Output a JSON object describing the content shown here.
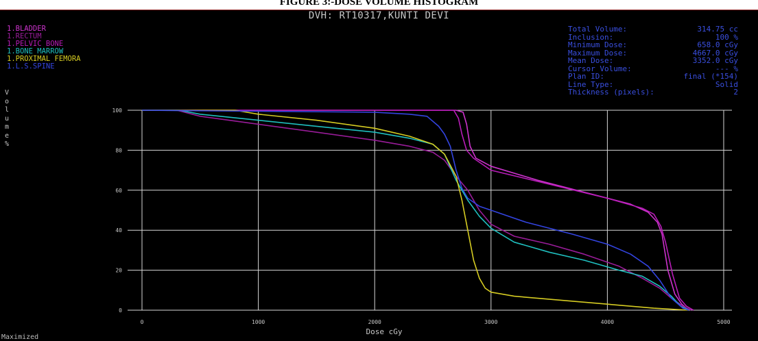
{
  "caption": "FIGURE 3:-DOSE VOLUME HISTOGRAM",
  "window": {
    "status": "Maximized"
  },
  "structures": [
    {
      "label": "1.BLADDER",
      "color": "#cc33cc"
    },
    {
      "label": "1.RECTUM",
      "color": "#991c99"
    },
    {
      "label": "1.PELVIC BONE",
      "color": "#b81cb8"
    },
    {
      "label": "1.BONE MARROW",
      "color": "#1fbfbf"
    },
    {
      "label": "1.PROXIMAL FEMORA",
      "color": "#d6cc22"
    },
    {
      "label": "1.L.S.SPINE",
      "color": "#3344e0"
    }
  ],
  "info": [
    {
      "label": "Total Volume:",
      "value": "314.75 cc"
    },
    {
      "label": "Inclusion:",
      "value": "100 %"
    },
    {
      "label": "Minimum Dose:",
      "value": "658.0 cGy"
    },
    {
      "label": "Maximum Dose:",
      "value": "4667.0 cGy"
    },
    {
      "label": "Mean Dose:",
      "value": "3352.0 cGy"
    },
    {
      "label": "Cursor Volume:",
      "value": "--- %"
    },
    {
      "label": "Plan ID:",
      "value": "final (*154)"
    },
    {
      "label": "Line Type:",
      "value": "Solid"
    },
    {
      "label": "Thickness (pixels):",
      "value": "2"
    }
  ],
  "chart_data": {
    "type": "line",
    "title": "DVH: RT10317,KUNTI DEVI",
    "xlabel": "Dose cGy",
    "ylabel": "Volume %",
    "xlim": [
      0,
      5000
    ],
    "ylim": [
      0,
      100
    ],
    "xticks": [
      0,
      1000,
      2000,
      3000,
      4000,
      5000
    ],
    "yticks": [
      0,
      20,
      40,
      60,
      80,
      100
    ],
    "grid": true,
    "series": [
      {
        "name": "1.BLADDER",
        "color": "#cc33cc",
        "points": [
          [
            0,
            100
          ],
          [
            2700,
            100
          ],
          [
            2760,
            99
          ],
          [
            2790,
            93
          ],
          [
            2820,
            82
          ],
          [
            2870,
            76
          ],
          [
            3000,
            72
          ],
          [
            3400,
            65
          ],
          [
            3800,
            59
          ],
          [
            4200,
            53
          ],
          [
            4350,
            49
          ],
          [
            4430,
            44
          ],
          [
            4470,
            38
          ],
          [
            4520,
            20
          ],
          [
            4580,
            8
          ],
          [
            4640,
            3
          ],
          [
            4700,
            0
          ]
        ]
      },
      {
        "name": "1.RECTUM",
        "color": "#991c99",
        "points": [
          [
            0,
            100
          ],
          [
            300,
            100
          ],
          [
            500,
            97
          ],
          [
            1000,
            93
          ],
          [
            1500,
            89
          ],
          [
            2000,
            85
          ],
          [
            2300,
            82
          ],
          [
            2500,
            79
          ],
          [
            2600,
            75
          ],
          [
            2700,
            67
          ],
          [
            2800,
            60
          ],
          [
            2900,
            50
          ],
          [
            3000,
            43
          ],
          [
            3200,
            37
          ],
          [
            3500,
            33
          ],
          [
            3800,
            28
          ],
          [
            4100,
            22
          ],
          [
            4300,
            16
          ],
          [
            4450,
            11
          ],
          [
            4550,
            6
          ],
          [
            4650,
            2
          ],
          [
            4720,
            0
          ]
        ]
      },
      {
        "name": "1.PELVIC BONE",
        "color": "#b81cb8",
        "points": [
          [
            0,
            100
          ],
          [
            2680,
            100
          ],
          [
            2720,
            96
          ],
          [
            2750,
            88
          ],
          [
            2790,
            80
          ],
          [
            2850,
            76
          ],
          [
            3000,
            70
          ],
          [
            3500,
            63
          ],
          [
            4000,
            56
          ],
          [
            4300,
            51
          ],
          [
            4400,
            48
          ],
          [
            4460,
            42
          ],
          [
            4500,
            34
          ],
          [
            4560,
            18
          ],
          [
            4620,
            6
          ],
          [
            4680,
            2
          ],
          [
            4740,
            0
          ]
        ]
      },
      {
        "name": "1.BONE MARROW",
        "color": "#1fbfbf",
        "points": [
          [
            0,
            100
          ],
          [
            320,
            100
          ],
          [
            500,
            98
          ],
          [
            1000,
            95
          ],
          [
            1500,
            92
          ],
          [
            2000,
            89
          ],
          [
            2300,
            86
          ],
          [
            2500,
            83
          ],
          [
            2600,
            78
          ],
          [
            2700,
            65
          ],
          [
            2800,
            55
          ],
          [
            2900,
            47
          ],
          [
            3000,
            41
          ],
          [
            3200,
            34
          ],
          [
            3500,
            29
          ],
          [
            3800,
            25
          ],
          [
            4100,
            20
          ],
          [
            4300,
            17
          ],
          [
            4450,
            12
          ],
          [
            4550,
            7
          ],
          [
            4630,
            2
          ],
          [
            4700,
            0
          ]
        ]
      },
      {
        "name": "1.PROXIMAL FEMORA",
        "color": "#d6cc22",
        "points": [
          [
            0,
            100
          ],
          [
            800,
            100
          ],
          [
            1000,
            98
          ],
          [
            1500,
            95
          ],
          [
            2000,
            91
          ],
          [
            2300,
            87
          ],
          [
            2500,
            83
          ],
          [
            2600,
            78
          ],
          [
            2700,
            67
          ],
          [
            2750,
            55
          ],
          [
            2800,
            40
          ],
          [
            2850,
            25
          ],
          [
            2900,
            16
          ],
          [
            2950,
            11
          ],
          [
            3000,
            9
          ],
          [
            3200,
            7
          ],
          [
            3600,
            5
          ],
          [
            4000,
            3
          ],
          [
            4400,
            1
          ],
          [
            4700,
            0
          ]
        ]
      },
      {
        "name": "1.L.S.SPINE",
        "color": "#3344e0",
        "points": [
          [
            0,
            100
          ],
          [
            2000,
            99
          ],
          [
            2300,
            98
          ],
          [
            2450,
            97
          ],
          [
            2550,
            92
          ],
          [
            2600,
            88
          ],
          [
            2650,
            82
          ],
          [
            2700,
            70
          ],
          [
            2750,
            61
          ],
          [
            2800,
            56
          ],
          [
            2900,
            52
          ],
          [
            3000,
            50
          ],
          [
            3300,
            44
          ],
          [
            3700,
            38
          ],
          [
            4000,
            33
          ],
          [
            4200,
            28
          ],
          [
            4350,
            22
          ],
          [
            4450,
            15
          ],
          [
            4550,
            6
          ],
          [
            4650,
            1
          ],
          [
            4700,
            0
          ]
        ]
      }
    ]
  }
}
